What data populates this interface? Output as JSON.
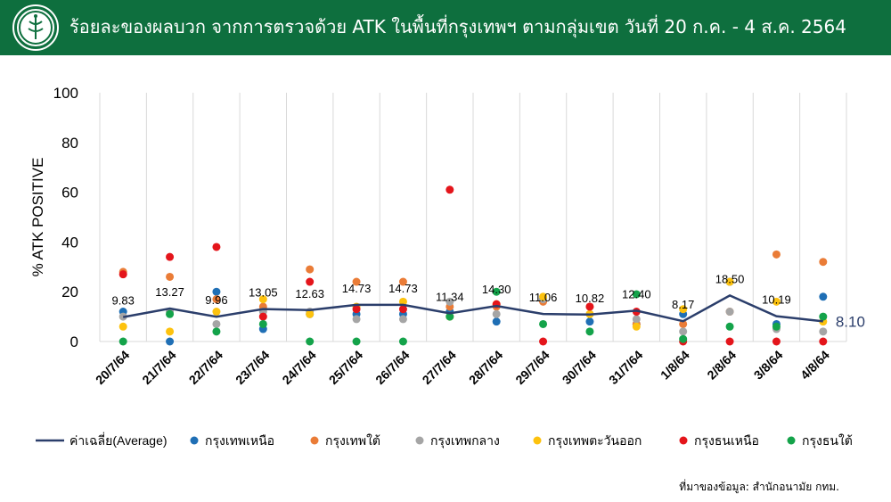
{
  "header": {
    "title": "ร้อยละของผลบวก จากการตรวจด้วย ATK ในพื้นที่กรุงเทพฯ ตามกลุ่มเขต วันที่ 20 ก.ค. - 4 ส.ค. 2564",
    "background": "#0e6f3e"
  },
  "source": "ที่มาของข้อมูล: สำนักอนามัย กทม.",
  "chart_data": {
    "type": "line",
    "title": "",
    "xlabel": "",
    "ylabel": "% ATK POSITIVE",
    "ylim": [
      0,
      100
    ],
    "yticks": [
      0,
      20,
      40,
      60,
      80,
      100
    ],
    "grid": "vertical",
    "legend": "bottom",
    "categories": [
      "20/7/64",
      "21/7/64",
      "22/7/64",
      "23/7/64",
      "24/7/64",
      "25/7/64",
      "26/7/64",
      "27/7/64",
      "28/7/64",
      "29/7/64",
      "30/7/64",
      "31/7/64",
      "1/8/64",
      "2/8/64",
      "3/8/64",
      "4/8/64"
    ],
    "average": {
      "name": "ค่าเฉลี่ย(Average)",
      "color": "#2b3e6b",
      "values": [
        9.83,
        13.27,
        9.96,
        13.05,
        12.63,
        14.73,
        14.73,
        11.34,
        14.3,
        11.06,
        10.82,
        12.4,
        8.17,
        18.5,
        10.19,
        8.1
      ],
      "labels": [
        "9.83",
        "13.27",
        "9.96",
        "13.05",
        "12.63",
        "14.73",
        "14.73",
        "11.34",
        "14.30",
        "11.06",
        "10.82",
        "12.40",
        "8.17",
        "18.50",
        "10.19",
        "8.10"
      ]
    },
    "series": [
      {
        "name": "กรุงเทพเหนือ",
        "color": "#1f6fb5",
        "values": [
          12,
          0,
          20,
          5,
          11,
          11,
          11,
          12,
          8,
          17,
          8,
          7,
          11,
          24,
          7,
          18
        ]
      },
      {
        "name": "กรุงเทพใต้",
        "color": "#ea7c37",
        "values": [
          28,
          26,
          17,
          14,
          29,
          24,
          24,
          14,
          14,
          16,
          14,
          7,
          7,
          12,
          35,
          32
        ]
      },
      {
        "name": "กรุงเทพกลาง",
        "color": "#a5a5a5",
        "values": [
          10,
          12,
          7,
          12,
          12,
          9,
          9,
          16,
          11,
          17,
          11,
          9,
          4,
          12,
          5,
          4
        ]
      },
      {
        "name": "กรุงเทพตะวันออก",
        "color": "#fdc20e",
        "values": [
          6,
          4,
          12,
          17,
          11,
          14,
          16,
          10,
          15,
          18,
          11,
          6,
          13,
          24,
          16,
          8
        ]
      },
      {
        "name": "กรุงธนเหนือ",
        "color": "#e4151b",
        "values": [
          27,
          34,
          38,
          10,
          24,
          13,
          13,
          61,
          15,
          0,
          14,
          12,
          0,
          0,
          0,
          0
        ]
      },
      {
        "name": "กรุงธนใต้",
        "color": "#14a34a",
        "values": [
          0,
          11,
          4,
          7,
          0,
          0,
          0,
          10,
          20,
          7,
          4,
          19,
          1,
          6,
          6,
          10
        ]
      }
    ]
  }
}
